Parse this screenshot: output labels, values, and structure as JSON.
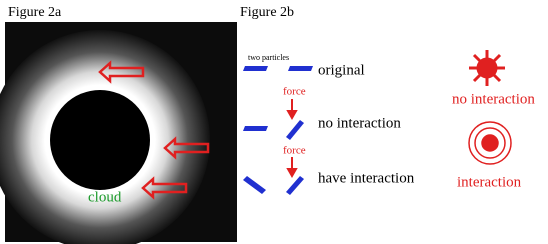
{
  "figure_a": {
    "title": "Figure 2a",
    "label": "cloud"
  },
  "figure_b": {
    "title": "Figure 2b",
    "particles_label": "two particles",
    "rows": [
      {
        "label": "original"
      },
      {
        "force": "force",
        "label": "no interaction"
      },
      {
        "force": "force",
        "label": "have interaction"
      }
    ],
    "legend": [
      {
        "label": "no interaction"
      },
      {
        "label": "interaction"
      }
    ]
  }
}
